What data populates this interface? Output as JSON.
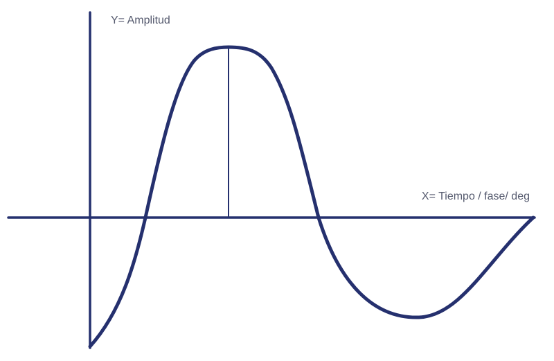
{
  "diagram": {
    "y_axis_label": "Y= Amplitud",
    "x_axis_label": "X= Tiempo / fase/ deg",
    "colors": {
      "stroke": "#25306e",
      "label": "#555a6e",
      "background": "#ffffff"
    }
  }
}
